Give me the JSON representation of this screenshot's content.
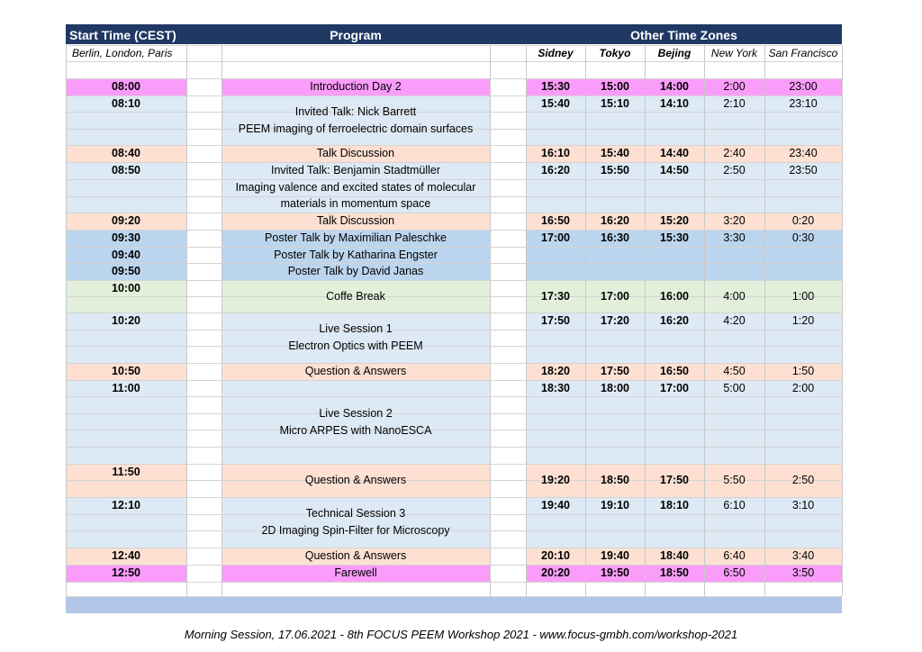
{
  "header": {
    "start_time": "Start Time (CEST)",
    "program": "Program",
    "other_zones": "Other Time Zones"
  },
  "subheader": {
    "cities": "Berlin, London, Paris",
    "zones": [
      "Sidney",
      "Tokyo",
      "Bejing",
      "New York",
      "San Francisco"
    ]
  },
  "rows": [
    {
      "time": "08:00",
      "program": [
        "Introduction Day 2"
      ],
      "zones": [
        "15:30",
        "15:00",
        "14:00",
        "2:00",
        "23:00"
      ],
      "color": "#fa9cfa"
    },
    {
      "time": "08:10",
      "program": [
        "Invited Talk: Nick Barrett",
        "PEEM imaging of ferroelectric domain surfaces"
      ],
      "zones": [
        "15:40",
        "15:10",
        "14:10",
        "2:10",
        "23:10"
      ],
      "color": "#dde9f5"
    },
    {
      "time": "08:40",
      "program": [
        "Talk Discussion"
      ],
      "zones": [
        "16:10",
        "15:40",
        "14:40",
        "2:40",
        "23:40"
      ],
      "color": "#fde0d2"
    },
    {
      "time": "08:50",
      "program": [
        "Invited Talk: Benjamin Stadtmüller",
        "Imaging valence and excited states of molecular",
        "materials in momentum space"
      ],
      "zones": [
        "16:20",
        "15:50",
        "14:50",
        "2:50",
        "23:50"
      ],
      "color": "#dde9f5"
    },
    {
      "time": "09:20",
      "program": [
        "Talk Discussion"
      ],
      "zones": [
        "16:50",
        "16:20",
        "15:20",
        "3:20",
        "0:20"
      ],
      "color": "#fde0d2"
    },
    {
      "times": [
        "09:30",
        "09:40",
        "09:50"
      ],
      "program": [
        "Poster Talk by Maximilian Paleschke",
        "Poster Talk by Katharina Engster",
        "Poster Talk by David Janas"
      ],
      "zones": [
        "17:00",
        "16:30",
        "15:30",
        "3:30",
        "0:30"
      ],
      "color": "#bcd5ee"
    },
    {
      "time": "10:00",
      "program": [
        "Coffe Break"
      ],
      "zones": [
        "17:30",
        "17:00",
        "16:00",
        "4:00",
        "1:00"
      ],
      "color": "#e2efda"
    },
    {
      "time": "10:20",
      "program": [
        "Live Session 1",
        "Electron Optics with PEEM"
      ],
      "zones": [
        "17:50",
        "17:20",
        "16:20",
        "4:20",
        "1:20"
      ],
      "color": "#dde9f5"
    },
    {
      "time": "10:50",
      "program": [
        "Question & Answers"
      ],
      "zones": [
        "18:20",
        "17:50",
        "16:50",
        "4:50",
        "1:50"
      ],
      "color": "#fde0d2"
    },
    {
      "time": "11:00",
      "program": [
        "Live Session 2",
        "Micro ARPES with NanoESCA"
      ],
      "zones": [
        "18:30",
        "18:00",
        "17:00",
        "5:00",
        "2:00"
      ],
      "color": "#dde9f5"
    },
    {
      "time": "11:50",
      "program": [
        "Question & Answers"
      ],
      "zones": [
        "19:20",
        "18:50",
        "17:50",
        "5:50",
        "2:50"
      ],
      "color": "#fde0d2"
    },
    {
      "time": "12:10",
      "program": [
        "Technical Session 3",
        "2D Imaging Spin-Filter for Microscopy"
      ],
      "zones": [
        "19:40",
        "19:10",
        "18:10",
        "6:10",
        "3:10"
      ],
      "color": "#dde9f5"
    },
    {
      "time": "12:40",
      "program": [
        "Question & Answers"
      ],
      "zones": [
        "20:10",
        "19:40",
        "18:40",
        "6:40",
        "3:40"
      ],
      "color": "#fde0d2"
    },
    {
      "time": "12:50",
      "program": [
        "Farewell"
      ],
      "zones": [
        "20:20",
        "19:50",
        "18:50",
        "6:50",
        "3:50"
      ],
      "color": "#fa9cfa"
    }
  ],
  "footer": "Morning Session, 17.06.2021 - 8th FOCUS PEEM Workshop 2021 - www.focus-gmbh.com/workshop-2021",
  "colors": {
    "header_bg": "#1f3864",
    "bottom_band": "#b4c6e7",
    "grid": "#c9c9c9"
  }
}
